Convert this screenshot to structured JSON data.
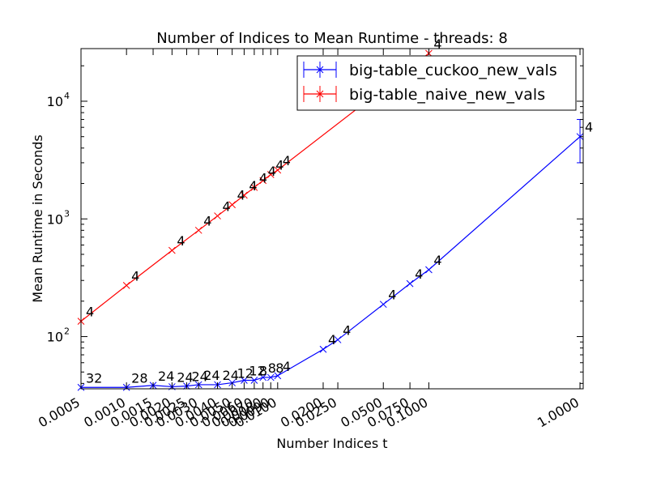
{
  "chart_data": {
    "type": "line",
    "title": "Number of Indices to Mean Runtime - threads: 8",
    "xlabel": "Number Indices t",
    "ylabel": "Mean Runtime in Seconds",
    "xscale": "log",
    "yscale": "log",
    "xlim": [
      0.0005,
      1.05
    ],
    "ylim": [
      36,
      28000
    ],
    "x_ticks": [
      {
        "value": 0.0005,
        "label": "0.0005"
      },
      {
        "value": 0.001,
        "label": "0.0010"
      },
      {
        "value": 0.0015,
        "label": "0.0015"
      },
      {
        "value": 0.002,
        "label": "0.0020"
      },
      {
        "value": 0.0025,
        "label": "0.0025"
      },
      {
        "value": 0.003,
        "label": "0.0030"
      },
      {
        "value": 0.004,
        "label": "0.0040"
      },
      {
        "value": 0.005,
        "label": "0.0050"
      },
      {
        "value": 0.006,
        "label": "0.0060"
      },
      {
        "value": 0.007,
        "label": "0.0070"
      },
      {
        "value": 0.008,
        "label": "0.0080"
      },
      {
        "value": 0.009,
        "label": "0.0090"
      },
      {
        "value": 0.01,
        "label": "0.0100"
      },
      {
        "value": 0.02,
        "label": "0.0200"
      },
      {
        "value": 0.025,
        "label": "0.0250"
      },
      {
        "value": 0.05,
        "label": "0.0500"
      },
      {
        "value": 0.075,
        "label": "0.0750"
      },
      {
        "value": 0.1,
        "label": "0.1000"
      },
      {
        "value": 1.0,
        "label": "1.0000"
      }
    ],
    "y_ticks": [
      {
        "value": 100,
        "base": "10",
        "exp": "2"
      },
      {
        "value": 1000,
        "base": "10",
        "exp": "3"
      },
      {
        "value": 10000,
        "base": "10",
        "exp": "4"
      }
    ],
    "legend": {
      "position": "top-right"
    },
    "series": [
      {
        "name": "big-table_cuckoo_new_vals",
        "color": "#0000ff",
        "points": [
          {
            "x": 0.0005,
            "y": 37,
            "label": "32"
          },
          {
            "x": 0.001,
            "y": 37,
            "label": "28"
          },
          {
            "x": 0.0015,
            "y": 38.5,
            "label": "24"
          },
          {
            "x": 0.002,
            "y": 37.5,
            "label": "24"
          },
          {
            "x": 0.0025,
            "y": 38,
            "label": "24"
          },
          {
            "x": 0.003,
            "y": 39,
            "label": "24"
          },
          {
            "x": 0.004,
            "y": 39,
            "label": "24"
          },
          {
            "x": 0.005,
            "y": 40.5,
            "label": "12"
          },
          {
            "x": 0.006,
            "y": 42.5,
            "label": "12"
          },
          {
            "x": 0.007,
            "y": 42.5,
            "label": "8"
          },
          {
            "x": 0.008,
            "y": 45,
            "label": "8"
          },
          {
            "x": 0.009,
            "y": 45,
            "label": "8"
          },
          {
            "x": 0.01,
            "y": 46.5,
            "label": "4"
          },
          {
            "x": 0.02,
            "y": 78,
            "label": "4"
          },
          {
            "x": 0.025,
            "y": 94,
            "label": "4"
          },
          {
            "x": 0.05,
            "y": 188,
            "label": "4"
          },
          {
            "x": 0.075,
            "y": 282,
            "label": "4"
          },
          {
            "x": 0.1,
            "y": 370,
            "label": "4"
          },
          {
            "x": 1.0,
            "y": 5000,
            "label": "4",
            "err_low": 3000,
            "err_high": 7000
          }
        ]
      },
      {
        "name": "big-table_naive_new_vals",
        "color": "#ff0000",
        "points": [
          {
            "x": 0.0005,
            "y": 135,
            "label": "4"
          },
          {
            "x": 0.001,
            "y": 272,
            "label": "4"
          },
          {
            "x": 0.002,
            "y": 540,
            "label": "4"
          },
          {
            "x": 0.003,
            "y": 800,
            "label": "4"
          },
          {
            "x": 0.004,
            "y": 1060,
            "label": "4"
          },
          {
            "x": 0.005,
            "y": 1320,
            "label": "4"
          },
          {
            "x": 0.006,
            "y": 1590,
            "label": "4"
          },
          {
            "x": 0.007,
            "y": 1850,
            "label": "4"
          },
          {
            "x": 0.008,
            "y": 2120,
            "label": "4"
          },
          {
            "x": 0.009,
            "y": 2380,
            "label": "4"
          },
          {
            "x": 0.01,
            "y": 2600,
            "label": "4"
          },
          {
            "x": 0.1,
            "y": 25500,
            "label": "4"
          }
        ]
      }
    ]
  }
}
